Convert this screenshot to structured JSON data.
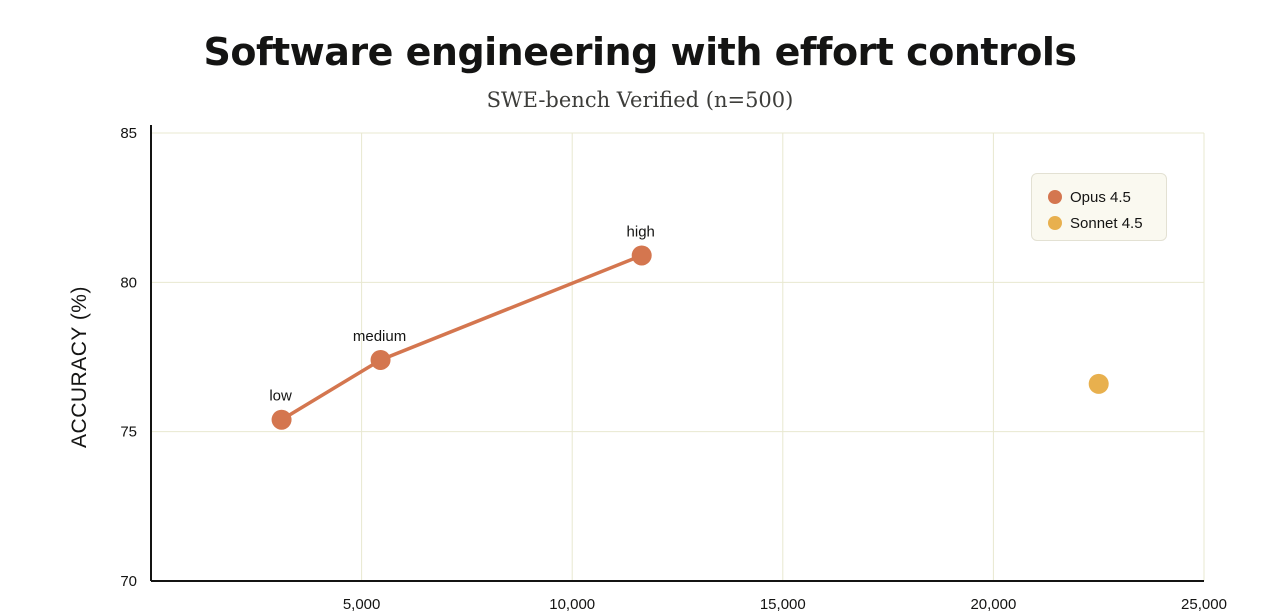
{
  "chart_data": {
    "type": "scatter",
    "title": "Software engineering with effort controls",
    "subtitle": "SWE-bench Verified (n=500)",
    "xlabel": "",
    "ylabel": "ACCURACY (%)",
    "xlim": [
      0,
      25000
    ],
    "ylim": [
      70,
      85
    ],
    "x_ticks": [
      5000,
      10000,
      15000,
      20000,
      25000
    ],
    "x_tick_labels": [
      "5,000",
      "10,000",
      "15,000",
      "20,000",
      "25,000"
    ],
    "y_ticks": [
      70,
      75,
      80,
      85
    ],
    "y_tick_labels": [
      "70",
      "75",
      "80",
      "85"
    ],
    "grid": true,
    "legend_position": "top-right",
    "series": [
      {
        "name": "Opus 4.5",
        "color": "#d4764f",
        "connected": true,
        "points": [
          {
            "x": 3100,
            "y": 75.4,
            "label": "low"
          },
          {
            "x": 5450,
            "y": 77.4,
            "label": "medium"
          },
          {
            "x": 11650,
            "y": 80.9,
            "label": "high"
          }
        ]
      },
      {
        "name": "Sonnet 4.5",
        "color": "#e8b04e",
        "connected": false,
        "points": [
          {
            "x": 22500,
            "y": 76.6,
            "label": ""
          }
        ]
      }
    ]
  }
}
